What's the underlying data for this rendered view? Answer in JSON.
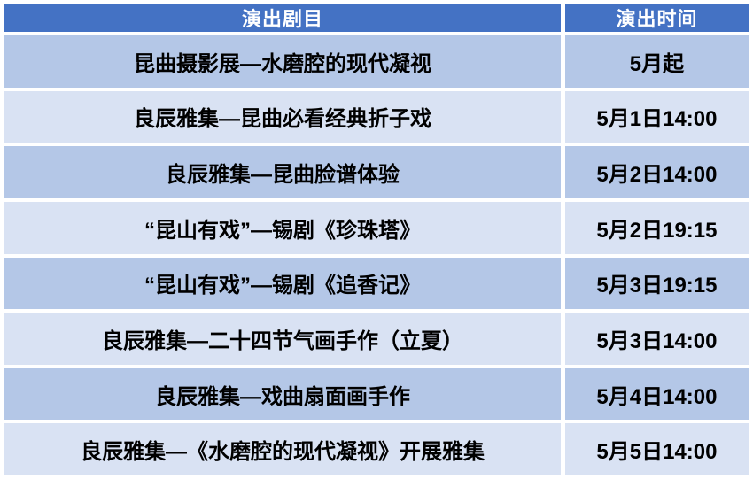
{
  "table": {
    "headers": [
      {
        "label": "演出剧目"
      },
      {
        "label": "演出时间"
      }
    ],
    "rows": [
      {
        "program": "昆曲摄影展—水磨腔的现代凝视",
        "time": "5月起"
      },
      {
        "program": "良辰雅集—昆曲必看经典折子戏",
        "time": "5月1日14:00"
      },
      {
        "program": "良辰雅集—昆曲脸谱体验",
        "time": "5月2日14:00"
      },
      {
        "program": "“昆山有戏”—锡剧《珍珠塔》",
        "time": "5月2日19:15"
      },
      {
        "program": "“昆山有戏”—锡剧《追香记》",
        "time": "5月3日19:15"
      },
      {
        "program": "良辰雅集—二十四节气画手作（立夏）",
        "time": "5月3日14:00"
      },
      {
        "program": "良辰雅集—戏曲扇面画手作",
        "time": "5月4日14:00"
      },
      {
        "program": "良辰雅集—《水磨腔的现代凝视》开展雅集",
        "time": "5月5日14:00"
      }
    ]
  },
  "colors": {
    "header_bg": "#4472C4",
    "header_text": "#FFFFFF",
    "row_band_dark": "#B4C7E7",
    "row_band_light": "#D9E2F3",
    "body_text": "#000000",
    "cell_gap": "#FFFFFF"
  },
  "chart_data": {
    "type": "table",
    "title": "",
    "columns": [
      "演出剧目",
      "演出时间"
    ],
    "rows": [
      [
        "昆曲摄影展—水磨腔的现代凝视",
        "5月起"
      ],
      [
        "良辰雅集—昆曲必看经典折子戏",
        "5月1日14:00"
      ],
      [
        "良辰雅集—昆曲脸谱体验",
        "5月2日14:00"
      ],
      [
        "“昆山有戏”—锡剧《珍珠塔》",
        "5月2日19:15"
      ],
      [
        "“昆山有戏”—锡剧《追香记》",
        "5月3日19:15"
      ],
      [
        "良辰雅集—二十四节气画手作（立夏）",
        "5月3日14:00"
      ],
      [
        "良辰雅集—戏曲扇面画手作",
        "5月4日14:00"
      ],
      [
        "良辰雅集—《水磨腔的现代凝视》开展雅集",
        "5月5日14:00"
      ]
    ]
  }
}
